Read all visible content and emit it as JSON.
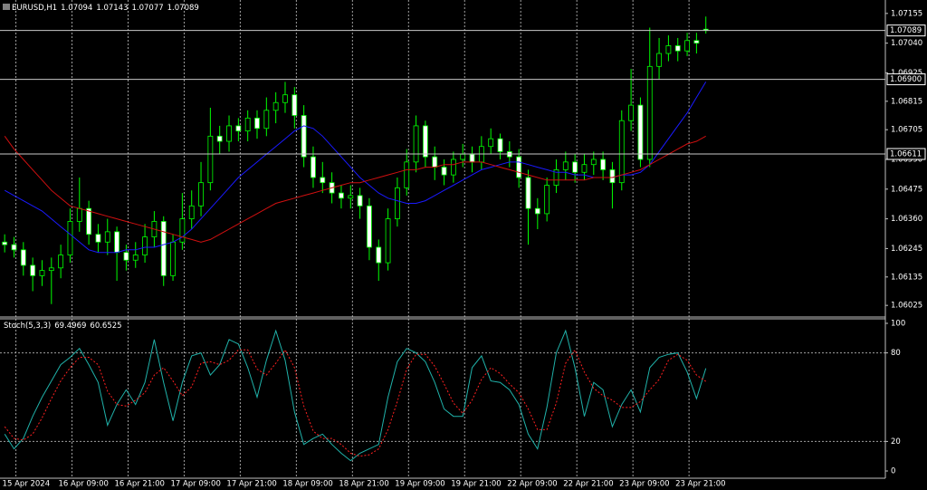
{
  "chart_data": [
    {
      "type": "candlestick",
      "title": "EURUSD,H1",
      "open": [
        1.0627,
        1.0626,
        1.0624,
        1.0618,
        1.0614,
        1.0616,
        1.0617,
        1.0622,
        1.0635,
        1.064,
        1.063,
        1.0627,
        1.0631,
        1.0623,
        1.062,
        1.0622,
        1.0629,
        1.0635,
        1.0614,
        1.0627,
        1.0636,
        1.0641,
        1.065,
        1.0668,
        1.0666,
        1.0672,
        1.067,
        1.0675,
        1.0671,
        1.0678,
        1.0681,
        1.0684,
        1.0676,
        1.066,
        1.0652,
        1.065,
        1.0646,
        1.0644,
        1.0645,
        1.0641,
        1.0625,
        1.0619,
        1.0636,
        1.0648,
        1.0658,
        1.0672,
        1.066,
        1.0656,
        1.0653,
        1.0659,
        1.0661,
        1.0658,
        1.0664,
        1.0667,
        1.0662,
        1.066,
        1.0652,
        1.064,
        1.0638,
        1.0649,
        1.0655,
        1.0658,
        1.0654,
        1.0657,
        1.0659,
        1.0655,
        1.065,
        1.0674,
        1.068,
        1.0659,
        1.0695,
        1.07,
        1.0703,
        1.0701,
        1.0705,
        1.07094
      ],
      "high": [
        1.063,
        1.0629,
        1.0627,
        1.0621,
        1.062,
        1.0621,
        1.0626,
        1.064,
        1.0652,
        1.0643,
        1.0634,
        1.0636,
        1.0633,
        1.0626,
        1.0627,
        1.0634,
        1.0639,
        1.0637,
        1.063,
        1.0646,
        1.0647,
        1.0658,
        1.0679,
        1.0672,
        1.0676,
        1.0675,
        1.0678,
        1.0678,
        1.0683,
        1.0685,
        1.0689,
        1.0687,
        1.068,
        1.0664,
        1.0658,
        1.0654,
        1.0649,
        1.0649,
        1.0648,
        1.0644,
        1.0628,
        1.064,
        1.0652,
        1.0663,
        1.0676,
        1.0674,
        1.0664,
        1.0659,
        1.0662,
        1.0665,
        1.0664,
        1.0668,
        1.0671,
        1.0669,
        1.0666,
        1.0663,
        1.0655,
        1.0644,
        1.0652,
        1.0659,
        1.0662,
        1.0661,
        1.0661,
        1.0662,
        1.0662,
        1.0658,
        1.0678,
        1.0694,
        1.0683,
        1.071,
        1.0706,
        1.0707,
        1.0706,
        1.0708,
        1.0708,
        1.07143
      ],
      "low": [
        1.0623,
        1.0621,
        1.0614,
        1.0608,
        1.061,
        1.0603,
        1.0613,
        1.0619,
        1.0631,
        1.0626,
        1.0623,
        1.0622,
        1.0612,
        1.0616,
        1.0617,
        1.0619,
        1.0625,
        1.061,
        1.0612,
        1.0624,
        1.0632,
        1.0637,
        1.0647,
        1.0661,
        1.0662,
        1.0666,
        1.0666,
        1.0667,
        1.0668,
        1.0673,
        1.0677,
        1.0671,
        1.0656,
        1.0648,
        1.0646,
        1.0642,
        1.064,
        1.064,
        1.0636,
        1.062,
        1.0612,
        1.0616,
        1.0633,
        1.0645,
        1.0654,
        1.0656,
        1.0651,
        1.0649,
        1.065,
        1.0656,
        1.0654,
        1.0655,
        1.0661,
        1.0659,
        1.0656,
        1.0648,
        1.0626,
        1.0632,
        1.0635,
        1.0646,
        1.0651,
        1.065,
        1.0651,
        1.0653,
        1.0651,
        1.064,
        1.0647,
        1.067,
        1.0656,
        1.0656,
        1.069,
        1.0697,
        1.0697,
        1.0699,
        1.07,
        1.07077
      ],
      "close": [
        1.0626,
        1.0624,
        1.0618,
        1.0614,
        1.0616,
        1.0617,
        1.0622,
        1.0635,
        1.064,
        1.063,
        1.0627,
        1.0631,
        1.0623,
        1.062,
        1.0622,
        1.0629,
        1.0635,
        1.0614,
        1.0627,
        1.0636,
        1.0641,
        1.065,
        1.0668,
        1.0666,
        1.0672,
        1.067,
        1.0675,
        1.0671,
        1.0678,
        1.0681,
        1.0684,
        1.0676,
        1.066,
        1.0652,
        1.065,
        1.0646,
        1.0644,
        1.0645,
        1.0641,
        1.0625,
        1.0619,
        1.0636,
        1.0648,
        1.0658,
        1.0672,
        1.066,
        1.0656,
        1.0653,
        1.0659,
        1.0661,
        1.0658,
        1.0664,
        1.0667,
        1.0662,
        1.066,
        1.0652,
        1.064,
        1.0638,
        1.0649,
        1.0655,
        1.0658,
        1.0654,
        1.0657,
        1.0659,
        1.0655,
        1.065,
        1.0674,
        1.068,
        1.0659,
        1.0695,
        1.07,
        1.0703,
        1.0701,
        1.0705,
        1.0704,
        1.07089
      ],
      "wick_color": "#00ff00",
      "bull_color": "#000000",
      "bear_color": "#ffffff",
      "lines": [
        {
          "color": "#1a1aff",
          "values": [
            1.0647,
            1.0645,
            1.0643,
            1.0641,
            1.0639,
            1.0636,
            1.0633,
            1.063,
            1.0627,
            1.0624,
            1.0623,
            1.0623,
            1.0623,
            1.0624,
            1.0624,
            1.0625,
            1.0625,
            1.0626,
            1.0627,
            1.0629,
            1.0632,
            1.0636,
            1.064,
            1.0644,
            1.0648,
            1.0652,
            1.0655,
            1.0658,
            1.0661,
            1.0664,
            1.0667,
            1.067,
            1.0672,
            1.0671,
            1.0668,
            1.0664,
            1.066,
            1.0656,
            1.0652,
            1.0649,
            1.0646,
            1.0644,
            1.0643,
            1.0642,
            1.0642,
            1.0643,
            1.0645,
            1.0647,
            1.0649,
            1.0651,
            1.0653,
            1.0655,
            1.0656,
            1.0657,
            1.0658,
            1.0658,
            1.0657,
            1.0656,
            1.0655,
            1.0654,
            1.0654,
            1.0653,
            1.0653,
            1.0652,
            1.0652,
            1.0652,
            1.0653,
            1.0653,
            1.0654,
            1.0657,
            1.0662,
            1.0667,
            1.0672,
            1.0677,
            1.0683,
            1.0689
          ]
        },
        {
          "color": "#d01010",
          "values": [
            1.0668,
            1.0663,
            1.0659,
            1.0655,
            1.0651,
            1.0647,
            1.0644,
            1.0641,
            1.064,
            1.0639,
            1.0638,
            1.0637,
            1.0636,
            1.0635,
            1.0634,
            1.0633,
            1.0632,
            1.0631,
            1.063,
            1.0629,
            1.0628,
            1.0627,
            1.0628,
            1.063,
            1.0632,
            1.0634,
            1.0636,
            1.0638,
            1.064,
            1.0642,
            1.0643,
            1.0644,
            1.0645,
            1.0646,
            1.0647,
            1.0648,
            1.0649,
            1.065,
            1.065,
            1.0651,
            1.0652,
            1.0653,
            1.0654,
            1.0655,
            1.0655,
            1.0656,
            1.0656,
            1.0657,
            1.0657,
            1.0658,
            1.0658,
            1.0658,
            1.0657,
            1.0656,
            1.0655,
            1.0654,
            1.0653,
            1.0652,
            1.0651,
            1.0651,
            1.0651,
            1.0651,
            1.0651,
            1.0652,
            1.0652,
            1.0652,
            1.0653,
            1.0654,
            1.0655,
            1.0657,
            1.0659,
            1.0661,
            1.0663,
            1.0665,
            1.0666,
            1.0668
          ]
        }
      ],
      "xlim": [
        -0.5,
        94.2
      ],
      "ylim": [
        1.0598,
        1.072
      ],
      "yticks": [
        {
          "value": 1.07155,
          "label": "1.07155"
        },
        {
          "value": 1.0704,
          "label": "1.07040"
        },
        {
          "value": 1.06925,
          "label": "1.06925"
        },
        {
          "value": 1.06815,
          "label": "1.06815"
        },
        {
          "value": 1.06705,
          "label": "1.06705"
        },
        {
          "value": 1.0659,
          "label": "1.06590"
        },
        {
          "value": 1.06475,
          "label": "1.06475"
        },
        {
          "value": 1.0636,
          "label": "1.06360"
        },
        {
          "value": 1.06245,
          "label": "1.06245"
        },
        {
          "value": 1.06135,
          "label": "1.06135"
        },
        {
          "value": 1.06025,
          "label": "1.06025"
        }
      ],
      "hlines": [
        1.07089,
        {
          "value": 1.069,
          "label": "1.06900"
        },
        1.06611
      ],
      "xticks": [
        {
          "value": 1.2,
          "label": "15 Apr 2024"
        },
        {
          "value": 7.2,
          "label": "16 Apr 09:00"
        },
        {
          "value": 13.2,
          "label": "16 Apr 21:00"
        },
        {
          "value": 19.2,
          "label": "17 Apr 09:00"
        },
        {
          "value": 25.2,
          "label": "17 Apr 21:00"
        },
        {
          "value": 31.2,
          "label": "18 Apr 09:00"
        },
        {
          "value": 37.2,
          "label": "18 Apr 21:00"
        },
        {
          "value": 43.2,
          "label": "19 Apr 09:00"
        },
        {
          "value": 49.2,
          "label": "19 Apr 21:00"
        },
        {
          "value": 55.2,
          "label": "22 Apr 09:00"
        },
        {
          "value": 61.2,
          "label": "22 Apr 21:00"
        },
        {
          "value": 67.2,
          "label": "23 Apr 09:00"
        },
        {
          "value": 73.2,
          "label": "23 Apr 21:00"
        }
      ]
    },
    {
      "type": "line",
      "title": "Stoch(5,3,3)",
      "series": [
        {
          "color": "#20b2aa",
          "dashed": false,
          "values": [
            25,
            15,
            22,
            37,
            50,
            61,
            72,
            77,
            83,
            72,
            60,
            31,
            45,
            55,
            45,
            60,
            89,
            60,
            34,
            60,
            78,
            80,
            65,
            72,
            89,
            86,
            70,
            50,
            75,
            95,
            75,
            40,
            18,
            22,
            25,
            18,
            12,
            7,
            12,
            15,
            18,
            50,
            74,
            83,
            80,
            74,
            60,
            42,
            37,
            37,
            70,
            78,
            61,
            60,
            55,
            45,
            25,
            15,
            43,
            80,
            95,
            70,
            37,
            60,
            55,
            30,
            45,
            55,
            40,
            70,
            77,
            79,
            80,
            67,
            49,
            69.4969
          ]
        },
        {
          "color": "#ff2020",
          "dashed": true,
          "values": [
            30,
            22,
            21,
            25,
            36,
            49,
            61,
            70,
            77,
            77,
            72,
            54,
            45,
            44,
            48,
            53,
            65,
            70,
            61,
            51,
            57,
            73,
            74,
            72,
            75,
            82,
            82,
            69,
            65,
            73,
            82,
            70,
            44,
            27,
            22,
            22,
            18,
            12,
            10,
            11,
            15,
            28,
            47,
            69,
            79,
            79,
            71,
            59,
            46,
            39,
            48,
            62,
            70,
            66,
            59,
            53,
            42,
            28,
            28,
            46,
            73,
            82,
            67,
            56,
            51,
            48,
            43,
            43,
            47,
            55,
            62,
            75,
            79,
            75,
            65,
            60.6525
          ]
        }
      ],
      "ylim": [
        0,
        100
      ],
      "yticks": [
        0,
        20,
        80,
        100
      ]
    }
  ]
}
